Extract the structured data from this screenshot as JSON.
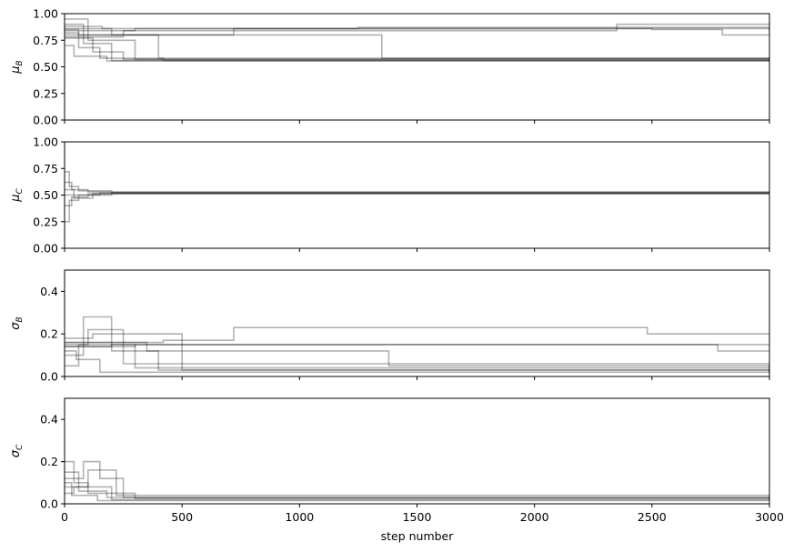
{
  "chart_data": [
    {
      "type": "line",
      "ylabel_symbol": "μ",
      "ylabel_sub": "B",
      "ylim": [
        0,
        1
      ],
      "yticks": [
        "0.00",
        "0.25",
        "0.50",
        "0.75",
        "1.00"
      ],
      "xlim": [
        0,
        3000
      ],
      "xticks_shown": false,
      "line_color": "#000000",
      "line_alpha": 0.3,
      "series": [
        {
          "x": [
            0,
            60,
            150,
            420,
            3000
          ],
          "y": [
            0.82,
            0.68,
            0.58,
            0.56,
            0.56
          ]
        },
        {
          "x": [
            0,
            80,
            200,
            3000
          ],
          "y": [
            0.9,
            0.72,
            0.56,
            0.555
          ]
        },
        {
          "x": [
            0,
            120,
            250,
            3000
          ],
          "y": [
            0.77,
            0.64,
            0.57,
            0.565
          ]
        },
        {
          "x": [
            0,
            40,
            180,
            3000
          ],
          "y": [
            0.7,
            0.6,
            0.555,
            0.56
          ]
        },
        {
          "x": [
            0,
            100,
            300,
            3000
          ],
          "y": [
            0.95,
            0.75,
            0.57,
            0.555
          ]
        },
        {
          "x": [
            0,
            60,
            400,
            3000
          ],
          "y": [
            0.85,
            0.8,
            0.58,
            0.56
          ]
        },
        {
          "x": [
            0,
            200,
            1300,
            1350,
            3000
          ],
          "y": [
            0.86,
            0.8,
            0.8,
            0.58,
            0.565
          ]
        },
        {
          "x": [
            0,
            300,
            1250,
            3000
          ],
          "y": [
            0.84,
            0.86,
            0.87,
            0.83
          ]
        },
        {
          "x": [
            0,
            400,
            720,
            2500,
            2800,
            3000
          ],
          "y": [
            0.8,
            0.8,
            0.86,
            0.85,
            0.8,
            0.8
          ]
        },
        {
          "x": [
            0,
            250,
            2350,
            3000
          ],
          "y": [
            0.78,
            0.84,
            0.9,
            0.92
          ]
        },
        {
          "x": [
            0,
            160,
            3000
          ],
          "y": [
            0.88,
            0.86,
            0.86
          ]
        }
      ]
    },
    {
      "type": "line",
      "ylabel_symbol": "μ",
      "ylabel_sub": "C",
      "ylim": [
        0,
        1
      ],
      "yticks": [
        "0.00",
        "0.25",
        "0.50",
        "0.75",
        "1.00"
      ],
      "xlim": [
        0,
        3000
      ],
      "xticks_shown": false,
      "line_color": "#000000",
      "line_alpha": 0.3,
      "series": [
        {
          "x": [
            0,
            20,
            60,
            200,
            3000
          ],
          "y": [
            0.25,
            0.45,
            0.5,
            0.52,
            0.52
          ]
        },
        {
          "x": [
            0,
            20,
            60,
            200,
            3000
          ],
          "y": [
            0.72,
            0.58,
            0.54,
            0.525,
            0.52
          ]
        },
        {
          "x": [
            0,
            30,
            100,
            3000
          ],
          "y": [
            0.4,
            0.48,
            0.51,
            0.52
          ]
        },
        {
          "x": [
            0,
            30,
            100,
            3000
          ],
          "y": [
            0.62,
            0.55,
            0.53,
            0.52
          ]
        },
        {
          "x": [
            0,
            40,
            120,
            3000
          ],
          "y": [
            0.5,
            0.47,
            0.515,
            0.522
          ]
        },
        {
          "x": [
            0,
            40,
            150,
            3000
          ],
          "y": [
            0.55,
            0.5,
            0.52,
            0.518
          ]
        }
      ]
    },
    {
      "type": "line",
      "ylabel_symbol": "σ",
      "ylabel_sub": "B",
      "ylim": [
        0,
        0.5
      ],
      "yticks": [
        "0.0",
        "0.2",
        "0.4"
      ],
      "xlim": [
        0,
        3000
      ],
      "xticks_shown": false,
      "line_color": "#000000",
      "line_alpha": 0.3,
      "series": [
        {
          "x": [
            0,
            80,
            200,
            400,
            3000
          ],
          "y": [
            0.1,
            0.28,
            0.12,
            0.03,
            0.02
          ]
        },
        {
          "x": [
            0,
            100,
            250,
            3000
          ],
          "y": [
            0.15,
            0.22,
            0.06,
            0.02
          ]
        },
        {
          "x": [
            0,
            60,
            300,
            3000
          ],
          "y": [
            0.05,
            0.15,
            0.04,
            0.025
          ]
        },
        {
          "x": [
            0,
            120,
            500,
            3000
          ],
          "y": [
            0.18,
            0.2,
            0.03,
            0.015
          ]
        },
        {
          "x": [
            0,
            50,
            150,
            3000
          ],
          "y": [
            0.12,
            0.08,
            0.02,
            0.03
          ]
        },
        {
          "x": [
            0,
            420,
            720,
            2480,
            3000
          ],
          "y": [
            0.16,
            0.17,
            0.23,
            0.2,
            0.2
          ]
        },
        {
          "x": [
            0,
            200,
            2780,
            3000
          ],
          "y": [
            0.14,
            0.15,
            0.12,
            0.12
          ]
        },
        {
          "x": [
            0,
            350,
            1380,
            2760,
            3000
          ],
          "y": [
            0.16,
            0.12,
            0.05,
            0.05,
            0.04
          ]
        },
        {
          "x": [
            0,
            300,
            3000
          ],
          "y": [
            0.14,
            0.15,
            0.15
          ]
        }
      ]
    },
    {
      "type": "line",
      "ylabel_symbol": "σ",
      "ylabel_sub": "C",
      "ylim": [
        0,
        0.5
      ],
      "yticks": [
        "0.0",
        "0.2",
        "0.4"
      ],
      "xlim": [
        0,
        3000
      ],
      "xticks": [
        "0",
        "500",
        "1000",
        "1500",
        "2000",
        "2500",
        "3000"
      ],
      "xlabel": "step number",
      "xticks_shown": true,
      "line_color": "#000000",
      "line_alpha": 0.3,
      "series": [
        {
          "x": [
            0,
            40,
            100,
            300,
            3000
          ],
          "y": [
            0.2,
            0.1,
            0.05,
            0.025,
            0.02
          ]
        },
        {
          "x": [
            0,
            80,
            150,
            250,
            3000
          ],
          "y": [
            0.12,
            0.2,
            0.12,
            0.03,
            0.02
          ]
        },
        {
          "x": [
            0,
            100,
            220,
            3000
          ],
          "y": [
            0.08,
            0.16,
            0.04,
            0.025
          ]
        },
        {
          "x": [
            0,
            40,
            200,
            3000
          ],
          "y": [
            0.05,
            0.08,
            0.02,
            0.02
          ]
        },
        {
          "x": [
            0,
            60,
            180,
            3000
          ],
          "y": [
            0.15,
            0.06,
            0.03,
            0.022
          ]
        },
        {
          "x": [
            0,
            30,
            140,
            3000
          ],
          "y": [
            0.1,
            0.04,
            0.015,
            0.018
          ]
        }
      ]
    }
  ]
}
